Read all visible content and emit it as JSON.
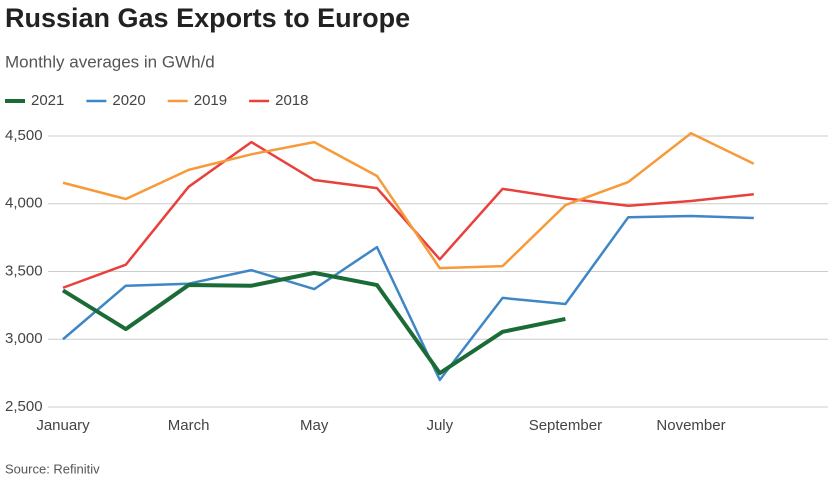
{
  "chart_data": {
    "type": "line",
    "title": "Russian Gas Exports to Europe",
    "subtitle": "Monthly averages in GWh/d",
    "source": "Source: Refinitiv",
    "categories": [
      "January",
      null,
      "March",
      null,
      "May",
      null,
      "July",
      null,
      "September",
      null,
      "November",
      null
    ],
    "ylim": [
      2500,
      4500
    ],
    "yticks": [
      {
        "value": 2500,
        "label": "2,500"
      },
      {
        "value": 3000,
        "label": "3,000"
      },
      {
        "value": 3500,
        "label": "3,500"
      },
      {
        "value": 4000,
        "label": "4,000"
      },
      {
        "value": 4500,
        "label": "4,500"
      }
    ],
    "grid": true,
    "series": [
      {
        "name": "2021",
        "color": "#1a6b35",
        "values": [
          3360,
          3075,
          3400,
          3395,
          3490,
          3400,
          2750,
          3055,
          3150,
          null,
          null,
          null
        ]
      },
      {
        "name": "2020",
        "color": "#3f86c6",
        "values": [
          3000,
          3395,
          3410,
          3510,
          3370,
          3680,
          2700,
          3305,
          3260,
          3900,
          3910,
          3895
        ]
      },
      {
        "name": "2019",
        "color": "#f79a3a",
        "values": [
          4155,
          4035,
          4250,
          4365,
          4455,
          4205,
          3525,
          3540,
          3990,
          4160,
          4520,
          4295
        ]
      },
      {
        "name": "2018",
        "color": "#e8413c",
        "values": [
          3380,
          3550,
          4125,
          4455,
          4175,
          4115,
          3590,
          4110,
          4040,
          3985,
          4020,
          4070
        ]
      }
    ]
  }
}
